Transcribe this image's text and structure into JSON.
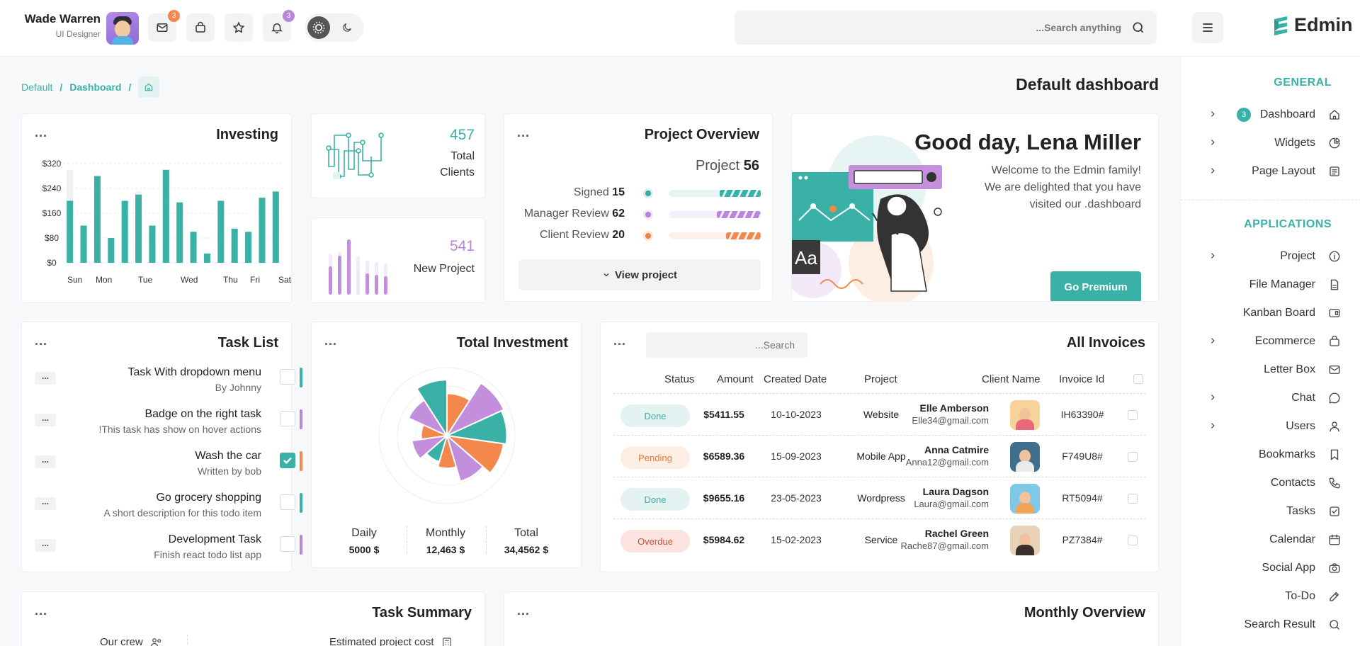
{
  "header": {
    "user_name": "Wade Warren",
    "user_role": "UI Designer",
    "mail_badge": "3",
    "notif_badge": "3",
    "search_placeholder": "...Search anything",
    "logo": "Edmin"
  },
  "breadcrumb": [
    "Default",
    "Dashboard"
  ],
  "page_title": "Default dashboard",
  "sidebar": {
    "general_label": "GENERAL",
    "applications_label": "APPLICATIONS",
    "general_items": [
      {
        "label": "Dashboard",
        "icon": "home-icon",
        "badge": "3",
        "chevron": true
      },
      {
        "label": "Widgets",
        "icon": "pie-icon",
        "chevron": true
      },
      {
        "label": "Page Layout",
        "icon": "layout-icon",
        "chevron": true
      }
    ],
    "app_items": [
      {
        "label": "Project",
        "icon": "info-icon",
        "chevron": true
      },
      {
        "label": "File Manager",
        "icon": "file-icon",
        "chevron": false
      },
      {
        "label": "Kanban Board",
        "icon": "board-icon",
        "chevron": false
      },
      {
        "label": "Ecommerce",
        "icon": "bag-icon",
        "chevron": true
      },
      {
        "label": "Letter Box",
        "icon": "mail-icon",
        "chevron": false
      },
      {
        "label": "Chat",
        "icon": "chat-icon",
        "chevron": true
      },
      {
        "label": "Users",
        "icon": "user-icon",
        "chevron": true
      },
      {
        "label": "Bookmarks",
        "icon": "bookmark-icon",
        "chevron": false
      },
      {
        "label": "Contacts",
        "icon": "phone-icon",
        "chevron": false
      },
      {
        "label": "Tasks",
        "icon": "check-icon",
        "chevron": false
      },
      {
        "label": "Calendar",
        "icon": "calendar-icon",
        "chevron": false
      },
      {
        "label": "Social App",
        "icon": "camera-icon",
        "chevron": false
      },
      {
        "label": "To-Do",
        "icon": "edit-icon",
        "chevron": false
      },
      {
        "label": "Search Result",
        "icon": "search-icon",
        "chevron": false
      }
    ]
  },
  "investing": {
    "title": "Investing",
    "chart_data": {
      "type": "bar",
      "title": "Investing",
      "y_ticks": [
        "$320",
        "$240",
        "$160",
        "$80",
        "$0"
      ],
      "ylim": [
        0,
        320
      ],
      "x_ticks": [
        "Sun",
        "Mon",
        "Tue",
        "Wed",
        "Thu",
        "Fri",
        "Sat"
      ],
      "values": [
        200,
        120,
        280,
        80,
        200,
        220,
        120,
        300,
        195,
        100,
        30,
        200,
        110,
        100,
        210,
        230
      ],
      "bg_values": [
        300,
        120,
        260,
        80,
        200,
        230,
        110,
        280,
        190,
        100,
        30,
        190,
        115,
        95,
        200,
        220
      ],
      "grid": true
    }
  },
  "total_clients": {
    "value": "457",
    "label_line1": "Total",
    "label_line2": "Clients"
  },
  "new_project": {
    "value": "541",
    "label": "New Project"
  },
  "project_overview": {
    "title": "Project Overview",
    "project_label": "Project",
    "project_count": "56",
    "rows": [
      {
        "label": "Signed",
        "value": "15",
        "color": "#3ab1a6",
        "fill": 0.45
      },
      {
        "label": "Manager Review",
        "value": "62",
        "color": "#b887d9",
        "fill": 0.48
      },
      {
        "label": "Client Review",
        "value": "20",
        "color": "#f4874b",
        "fill": 0.38
      }
    ],
    "button": "View project"
  },
  "greeting": {
    "title": "Good day, Lena Miller",
    "text": "Welcome to the Edmin family! We are delighted that you have visited our .dashboard",
    "button": "Go Premium"
  },
  "task_list": {
    "title": "Task List",
    "tasks": [
      {
        "title": "Task With dropdown menu",
        "sub": "By Johnny",
        "checked": false,
        "color": "#3ab1a6"
      },
      {
        "title": "Badge on the right task",
        "sub": "!This task has show on hover actions",
        "checked": false,
        "color": "#b887d9"
      },
      {
        "title": "Wash the car",
        "sub": "Written by bob",
        "checked": true,
        "color": "#f4874b"
      },
      {
        "title": "Go grocery shopping",
        "sub": "A short description for this todo item",
        "checked": false,
        "color": "#3ab1a6"
      },
      {
        "title": "Development Task",
        "sub": "Finish react todo list app",
        "checked": false,
        "color": "#b887d9"
      }
    ]
  },
  "total_investment": {
    "title": "Total Investment",
    "chart_data": {
      "type": "pie",
      "slices": [
        {
          "value": 62,
          "color": "#f4874b"
        },
        {
          "value": 92,
          "color": "#c38fdc"
        },
        {
          "value": 88,
          "color": "#3ab1a6"
        },
        {
          "value": 84,
          "color": "#f4874b"
        },
        {
          "value": 70,
          "color": "#c38fdc"
        },
        {
          "value": 48,
          "color": "#f4874b"
        },
        {
          "value": 40,
          "color": "#3ab1a6"
        },
        {
          "value": 52,
          "color": "#c38fdc"
        },
        {
          "value": 38,
          "color": "#f4874b"
        },
        {
          "value": 62,
          "color": "#c38fdc"
        },
        {
          "value": 82,
          "color": "#3ab1a6"
        }
      ]
    },
    "daily_label": "Daily",
    "daily_value": "5000 $",
    "monthly_label": "Monthly",
    "monthly_value": "12,463 $",
    "total_label": "Total",
    "total_value": "34,4562 $"
  },
  "invoices": {
    "title": "All Invoices",
    "search_placeholder": "...Search",
    "headers": {
      "status": "Status",
      "amount": "Amount",
      "created": "Created Date",
      "project": "Project",
      "client": "Client Name",
      "invoice": "Invoice Id"
    },
    "rows": [
      {
        "status": "Done",
        "amount": "$5411.55",
        "date": "10-10-2023",
        "project": "Website",
        "client": "Elle Amberson",
        "email": "Elle34@gmail.com",
        "id": "IH63390#",
        "av_bg": "#f7d39a",
        "av_body": "#e86a7a"
      },
      {
        "status": "Pending",
        "amount": "$6589.36",
        "date": "15-09-2023",
        "project": "Mobile App",
        "client": "Anna Catmire",
        "email": "Anna12@gmail.com",
        "id": "F749U8#",
        "av_bg": "#3f6e8f",
        "av_body": "#eaeaea"
      },
      {
        "status": "Done",
        "amount": "$9655.16",
        "date": "23-05-2023",
        "project": "Wordpress",
        "client": "Laura Dagson",
        "email": "Laura@gmail.com",
        "id": "RT5094#",
        "av_bg": "#7fc8e8",
        "av_body": "#f0a35a"
      },
      {
        "status": "Overdue",
        "amount": "$5984.62",
        "date": "15-02-2023",
        "project": "Service",
        "client": "Rachel Green",
        "email": "Rache87@gmail.com",
        "id": "PZ7384#",
        "av_bg": "#e8d2b8",
        "av_body": "#3b2f2a"
      }
    ]
  },
  "task_summary": {
    "title": "Task Summary",
    "crew_label": "Our crew",
    "cost_label": "Estimated project cost"
  },
  "monthly_overview": {
    "title": "Monthly Overview"
  }
}
